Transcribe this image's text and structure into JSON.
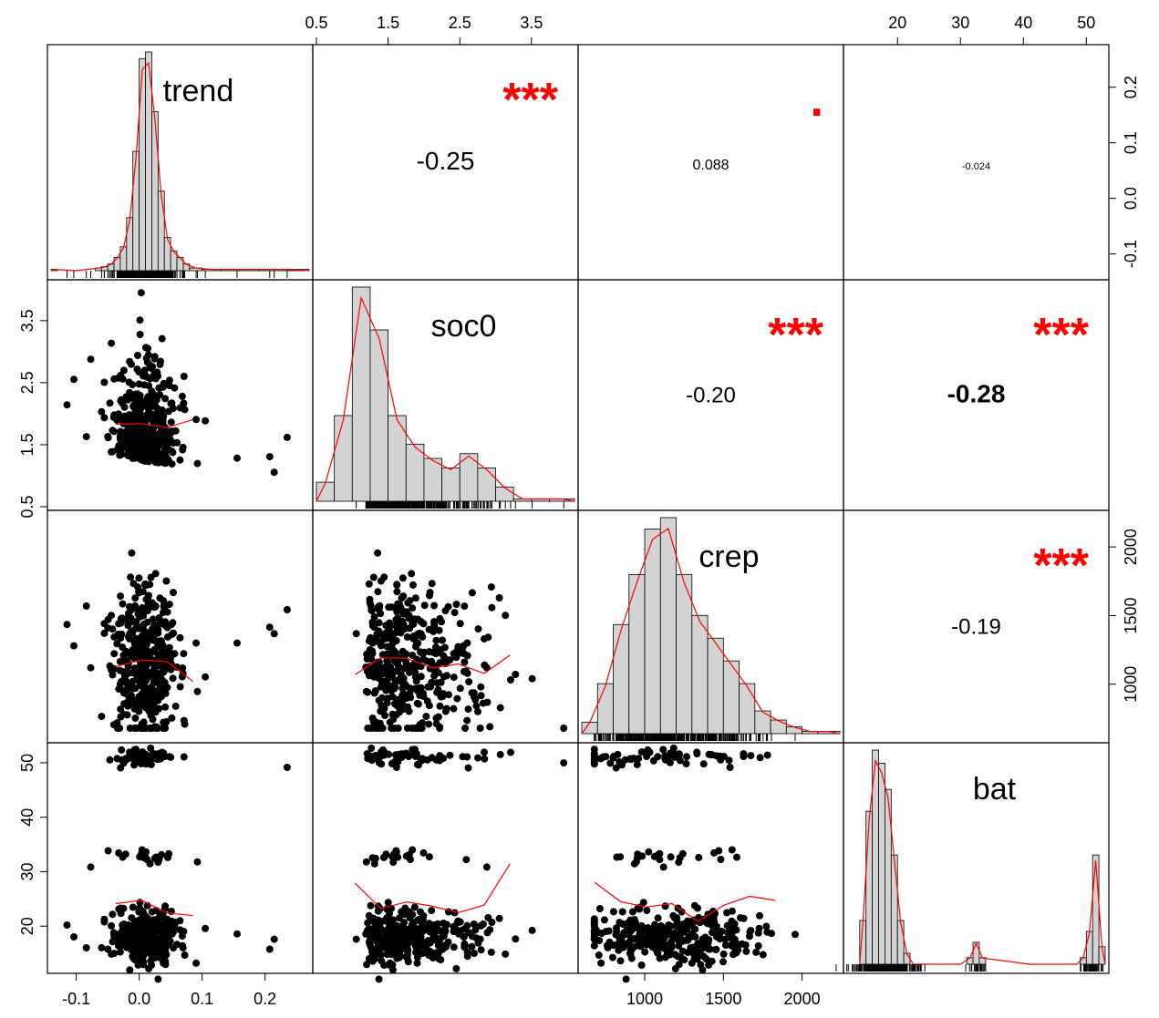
{
  "chart_data": {
    "type": "scatter",
    "variables": [
      "trend",
      "soc0",
      "crep",
      "bat"
    ],
    "axes": {
      "trend": {
        "range": [
          -0.14,
          0.27
        ],
        "ticks_bottom": [
          "-0.1",
          "0.0",
          "0.1",
          "0.2"
        ],
        "ticks_right": [
          "-0.1",
          "0.0",
          "0.1",
          "0.2"
        ]
      },
      "soc0": {
        "range": [
          0.5,
          4.1
        ],
        "ticks_top": [
          "0.5",
          "1.5",
          "2.5",
          "3.5"
        ],
        "ticks_left": [
          "0.5",
          "1.5",
          "2.5",
          "3.5"
        ]
      },
      "crep": {
        "range": [
          600,
          2240
        ],
        "ticks_bottom": [
          "1000",
          "1500",
          "2000"
        ],
        "ticks_right": [
          "1000",
          "1500",
          "2000"
        ]
      },
      "bat": {
        "range": [
          12,
          53
        ],
        "ticks_top": [
          "20",
          "30",
          "40",
          "50"
        ],
        "ticks_left": [
          "20",
          "30",
          "40",
          "50"
        ]
      }
    },
    "correlations": [
      {
        "pair": [
          "trend",
          "soc0"
        ],
        "value": "-0.25",
        "stars": "***"
      },
      {
        "pair": [
          "trend",
          "crep"
        ],
        "value": "0.088",
        "stars": "."
      },
      {
        "pair": [
          "trend",
          "bat"
        ],
        "value": "-0.024",
        "stars": ""
      },
      {
        "pair": [
          "soc0",
          "crep"
        ],
        "value": "-0.20",
        "stars": "***"
      },
      {
        "pair": [
          "soc0",
          "bat"
        ],
        "value": "-0.28",
        "stars": "***"
      },
      {
        "pair": [
          "crep",
          "bat"
        ],
        "value": "-0.19",
        "stars": "***"
      }
    ],
    "histograms": {
      "trend": {
        "bins": [
          -0.14,
          -0.13,
          -0.07,
          -0.06,
          -0.05,
          -0.04,
          -0.03,
          -0.02,
          -0.01,
          0.0,
          0.01,
          0.02,
          0.03,
          0.04,
          0.05,
          0.06,
          0.07,
          0.08,
          0.1,
          0.13,
          0.16,
          0.19,
          0.27
        ],
        "counts": [
          1,
          0,
          2,
          3,
          5,
          10,
          18,
          40,
          90,
          160,
          165,
          120,
          60,
          25,
          15,
          10,
          5,
          2,
          1,
          1,
          1,
          1
        ]
      },
      "soc0": {
        "bins": [
          0.5,
          0.75,
          1.0,
          1.25,
          1.5,
          1.75,
          2.0,
          2.25,
          2.5,
          2.75,
          3.0,
          3.25,
          3.5,
          3.75,
          4.1
        ],
        "counts": [
          8,
          36,
          90,
          72,
          36,
          24,
          18,
          14,
          20,
          14,
          6,
          1,
          1,
          1
        ]
      },
      "crep": {
        "bins": [
          600,
          700,
          800,
          900,
          1000,
          1100,
          1200,
          1300,
          1400,
          1500,
          1600,
          1700,
          1800,
          1900,
          2000,
          2100,
          2240
        ],
        "counts": [
          5,
          22,
          48,
          70,
          90,
          95,
          70,
          52,
          42,
          32,
          22,
          10,
          6,
          3,
          1,
          1
        ]
      },
      "bat": {
        "bins": [
          14,
          15,
          16,
          17,
          18,
          19,
          20,
          21,
          22,
          23,
          29,
          31,
          32,
          33,
          34,
          48,
          49,
          50,
          51,
          52,
          53
        ],
        "counts": [
          20,
          70,
          98,
          92,
          80,
          50,
          20,
          5,
          0,
          0,
          0,
          3,
          10,
          3,
          0,
          0,
          3,
          15,
          50,
          8
        ]
      }
    },
    "grid": false,
    "legend": "none"
  }
}
